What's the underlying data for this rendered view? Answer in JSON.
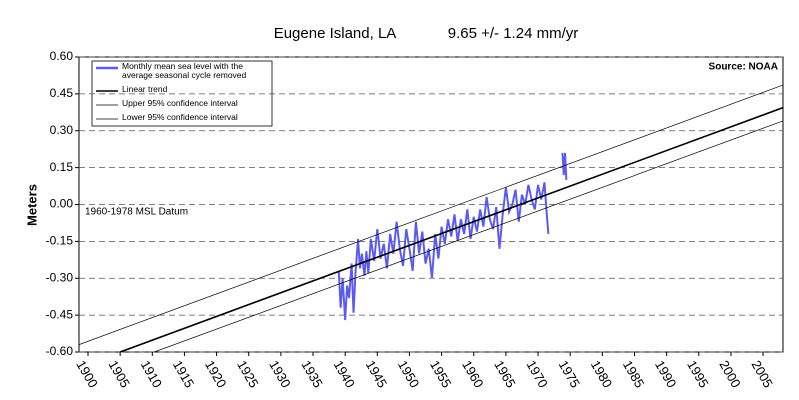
{
  "chart_data": {
    "type": "line",
    "title": "Eugene Island, LA",
    "subtitle": "9.65 +/- 1.24 mm/yr",
    "y_label": "Meters",
    "annotations": [
      "Source: NOAA",
      "1960-1978 MSL Datum"
    ],
    "xlim": [
      1898.6,
      2008.1
    ],
    "xticks": [
      1900,
      1905,
      1910,
      1915,
      1920,
      1925,
      1930,
      1935,
      1940,
      1945,
      1950,
      1955,
      1960,
      1965,
      1970,
      1975,
      1980,
      1985,
      1990,
      1995,
      2000,
      2005
    ],
    "ylim": [
      -0.6,
      0.6
    ],
    "yticks": [
      {
        "value": -0.6,
        "label": "-0.60"
      },
      {
        "value": -0.45,
        "label": "-0.45"
      },
      {
        "value": -0.3,
        "label": "-0.30"
      },
      {
        "value": -0.15,
        "label": "-0.15"
      },
      {
        "value": 0,
        "label": "0.00"
      },
      {
        "value": 0.15,
        "label": "0.15"
      },
      {
        "value": 0.3,
        "label": "0.30"
      },
      {
        "value": 0.45,
        "label": "0.45"
      },
      {
        "value": 0.6,
        "label": "0.60"
      }
    ],
    "grid": true,
    "series": [
      {
        "name": "Monthly mean sea level with the average seasonal cycle removed",
        "color": "#5b5bef",
        "x": [
          1939.0,
          1939.3,
          1939.6,
          1940.0,
          1940.3,
          1940.6,
          1941.0,
          1941.3,
          1941.6,
          1942.0,
          1942.3,
          1942.6,
          1943.0,
          1943.3,
          1943.6,
          1944.0,
          1944.5,
          1945.0,
          1945.5,
          1946.0,
          1946.5,
          1947.0,
          1947.5,
          1948.0,
          1948.5,
          1949.0,
          1949.5,
          1950.0,
          1950.5,
          1951.0,
          1951.5,
          1952.0,
          1952.5,
          1953.0,
          1953.5,
          1954.0,
          1954.5,
          1955.0,
          1955.5,
          1956.0,
          1956.5,
          1957.0,
          1957.5,
          1958.0,
          1958.5,
          1959.0,
          1959.5,
          1960.0,
          1960.5,
          1961.0,
          1961.5,
          1962.0,
          1962.5,
          1963.0,
          1963.5,
          1964.0,
          1964.5,
          1965.0,
          1965.5,
          1966.0,
          1966.5,
          1967.0,
          1967.5,
          1968.0,
          1968.5,
          1969.0,
          1969.5,
          1970.0,
          1970.5,
          1971.0,
          1971.3,
          1971.6,
          1972.5,
          1973.8,
          1974.0,
          1974.2,
          1974.4
        ],
        "values": [
          -0.27,
          -0.42,
          -0.3,
          -0.47,
          -0.33,
          -0.38,
          -0.24,
          -0.44,
          -0.28,
          -0.14,
          -0.26,
          -0.2,
          -0.29,
          -0.19,
          -0.28,
          -0.14,
          -0.23,
          -0.1,
          -0.22,
          -0.16,
          -0.26,
          -0.12,
          -0.2,
          -0.07,
          -0.18,
          -0.25,
          -0.1,
          -0.18,
          -0.27,
          -0.07,
          -0.2,
          -0.11,
          -0.24,
          -0.18,
          -0.3,
          -0.12,
          -0.22,
          -0.09,
          -0.16,
          -0.06,
          -0.13,
          -0.04,
          -0.15,
          -0.06,
          -0.12,
          -0.02,
          -0.14,
          -0.05,
          -0.11,
          -0.02,
          -0.09,
          0.03,
          -0.06,
          -0.1,
          -0.01,
          -0.18,
          -0.04,
          0.07,
          -0.03,
          0.0,
          0.06,
          -0.07,
          0.04,
          0.0,
          0.08,
          0.02,
          -0.02,
          0.08,
          0.02,
          0.09,
          -0.02,
          -0.12,
          null,
          0.21,
          0.12,
          0.21,
          0.1
        ],
        "width": 2
      },
      {
        "name": "Linear trend",
        "color": "#000000",
        "x": [
          1905,
          2008.1
        ],
        "values": [
          -0.6,
          0.394
        ],
        "width": 1.6
      },
      {
        "name": "Upper 95% confidence interval",
        "color": "#000000",
        "x": [
          1898.6,
          2008.1
        ],
        "values": [
          -0.57,
          0.486
        ],
        "width": 0.7
      },
      {
        "name": "Lower 95% confidence interval",
        "color": "#000000",
        "x": [
          1910.3,
          2008.1
        ],
        "values": [
          -0.6,
          0.34
        ],
        "width": 0.7
      }
    ]
  }
}
